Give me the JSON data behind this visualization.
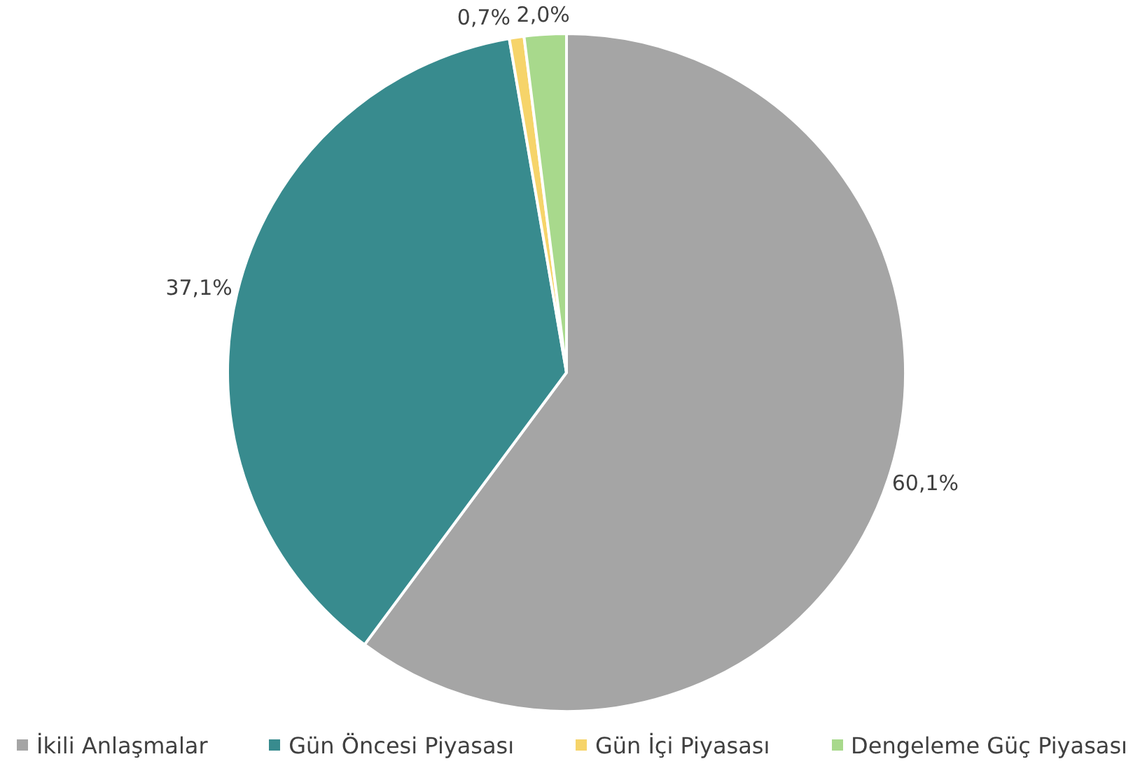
{
  "chart_data": {
    "type": "pie",
    "categories": [
      "İkili Anlaşmalar",
      "Gün Öncesi Piyasası",
      "Gün İçi Piyasası",
      "Dengeleme Güç Piyasası"
    ],
    "values": [
      60.1,
      37.1,
      0.7,
      2.0
    ],
    "colors": [
      "#a5a5a5",
      "#388b8e",
      "#f6d46a",
      "#a8d98c"
    ],
    "value_labels": [
      "60,1%",
      "37,1%",
      "0,7%",
      "2,0%"
    ],
    "legend": "bottom"
  }
}
